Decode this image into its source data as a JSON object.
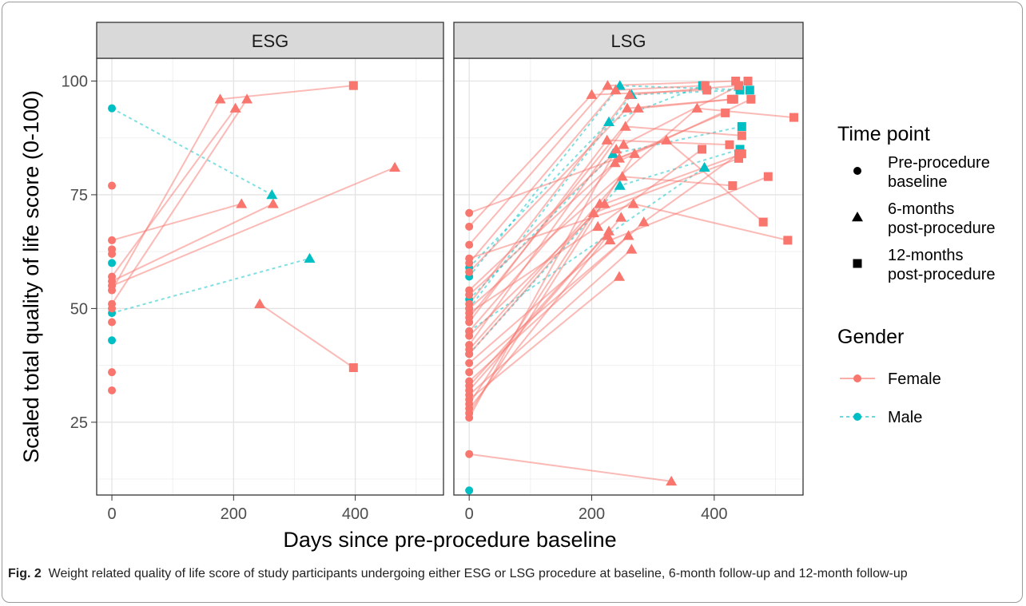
{
  "chart_data": {
    "type": "scatter",
    "ylabel": "Scaled total quality of life score (0-100)",
    "xlabel": "Days since pre-procedure baseline",
    "ylim": [
      9,
      105
    ],
    "yticks": [
      25,
      50,
      75,
      100
    ],
    "xticks": [
      0,
      200,
      400
    ],
    "grid": true,
    "panels": [
      {
        "name": "ESG",
        "xlim": [
          -25,
          545
        ],
        "trajectories": [
          {
            "gender": "Male",
            "points": [
              [
                0,
                94
              ],
              [
                263,
                75
              ]
            ]
          },
          {
            "gender": "Male",
            "points": [
              [
                0,
                49
              ],
              [
                325,
                61
              ]
            ]
          },
          {
            "gender": "Female",
            "points": [
              [
                0,
                54
              ],
              [
                178,
                96
              ],
              [
                397,
                99
              ]
            ]
          },
          {
            "gender": "Female",
            "points": [
              [
                0,
                51
              ],
              [
                222,
                96
              ]
            ]
          },
          {
            "gender": "Female",
            "points": [
              [
                0,
                57
              ],
              [
                203,
                94
              ]
            ]
          },
          {
            "gender": "Female",
            "points": [
              [
                0,
                65
              ],
              [
                213,
                73
              ]
            ]
          },
          {
            "gender": "Female",
            "points": [
              [
                0,
                56
              ],
              [
                265,
                73
              ]
            ]
          },
          {
            "gender": "Female",
            "points": [
              [
                0,
                55
              ],
              [
                465,
                81
              ]
            ]
          },
          {
            "gender": "Female",
            "points": [
              [
                243,
                51
              ],
              [
                397,
                37
              ]
            ]
          }
        ],
        "baseline_only": [
          {
            "gender": "Female",
            "y": 77
          },
          {
            "gender": "Female",
            "y": 63
          },
          {
            "gender": "Female",
            "y": 62
          },
          {
            "gender": "Female",
            "y": 50
          },
          {
            "gender": "Female",
            "y": 47
          },
          {
            "gender": "Female",
            "y": 36
          },
          {
            "gender": "Female",
            "y": 32
          },
          {
            "gender": "Male",
            "y": 60
          },
          {
            "gender": "Male",
            "y": 43
          }
        ]
      },
      {
        "name": "LSG",
        "xlim": [
          -25,
          545
        ],
        "trajectories": [
          {
            "gender": "Male",
            "points": [
              [
                0,
                59
              ],
              [
                228,
                91
              ],
              [
                381,
                99
              ]
            ]
          },
          {
            "gender": "Male",
            "points": [
              [
                0,
                57
              ],
              [
                246,
                99
              ],
              [
                458,
                98
              ]
            ]
          },
          {
            "gender": "Male",
            "points": [
              [
                0,
                52
              ],
              [
                235,
                84
              ],
              [
                445,
                90
              ]
            ]
          },
          {
            "gender": "Male",
            "points": [
              [
                0,
                50
              ],
              [
                265,
                97
              ],
              [
                442,
                98
              ]
            ]
          },
          {
            "gender": "Male",
            "points": [
              [
                0,
                45
              ],
              [
                384,
                81
              ]
            ]
          },
          {
            "gender": "Male",
            "points": [
              [
                0,
                40
              ],
              [
                246,
                77
              ],
              [
                442,
                85
              ]
            ]
          },
          {
            "gender": "Female",
            "points": [
              [
                0,
                71
              ],
              [
                322,
                87
              ],
              [
                480,
                69
              ]
            ]
          },
          {
            "gender": "Female",
            "points": [
              [
                0,
                68
              ],
              [
                200,
                97
              ],
              [
                388,
                98
              ]
            ]
          },
          {
            "gender": "Female",
            "points": [
              [
                0,
                64
              ],
              [
                226,
                99
              ],
              [
                435,
                100
              ]
            ]
          },
          {
            "gender": "Female",
            "points": [
              [
                0,
                61
              ],
              [
                268,
                73
              ],
              [
                520,
                65
              ]
            ]
          },
          {
            "gender": "Female",
            "points": [
              [
                0,
                60
              ],
              [
                239,
                98
              ],
              [
                385,
                99
              ]
            ]
          },
          {
            "gender": "Female",
            "points": [
              [
                0,
                58
              ],
              [
                258,
                94
              ],
              [
                428,
                96
              ]
            ]
          },
          {
            "gender": "Female",
            "points": [
              [
                0,
                54
              ],
              [
                252,
                86
              ],
              [
                455,
                100
              ]
            ]
          },
          {
            "gender": "Female",
            "points": [
              [
                0,
                53
              ],
              [
                245,
                83
              ],
              [
                418,
                93
              ]
            ]
          },
          {
            "gender": "Female",
            "points": [
              [
                0,
                51
              ],
              [
                262,
                97
              ],
              [
                440,
                99
              ]
            ]
          },
          {
            "gender": "Female",
            "points": [
              [
                0,
                50
              ],
              [
                372,
                94
              ],
              [
                530,
                92
              ]
            ]
          },
          {
            "gender": "Female",
            "points": [
              [
                0,
                49
              ],
              [
                210,
                68
              ],
              [
                380,
                85
              ]
            ]
          },
          {
            "gender": "Female",
            "points": [
              [
                0,
                48
              ],
              [
                276,
                94
              ],
              [
                432,
                96
              ]
            ]
          },
          {
            "gender": "Female",
            "points": [
              [
                0,
                47
              ],
              [
                225,
                87
              ],
              [
                425,
                86
              ]
            ]
          },
          {
            "gender": "Female",
            "points": [
              [
                0,
                45
              ],
              [
                238,
                82
              ],
              [
                460,
                96
              ]
            ]
          },
          {
            "gender": "Female",
            "points": [
              [
                0,
                44
              ],
              [
                221,
                73
              ],
              [
                445,
                84
              ]
            ]
          },
          {
            "gender": "Female",
            "points": [
              [
                0,
                42
              ],
              [
                255,
                90
              ],
              [
                445,
                88
              ]
            ]
          },
          {
            "gender": "Female",
            "points": [
              [
                0,
                41
              ],
              [
                250,
                79
              ],
              [
                430,
                77
              ]
            ]
          },
          {
            "gender": "Female",
            "points": [
              [
                0,
                40
              ],
              [
                203,
                71
              ],
              [
                440,
                83
              ]
            ]
          },
          {
            "gender": "Female",
            "points": [
              [
                0,
                38
              ],
              [
                230,
                65
              ],
              [
                488,
                79
              ]
            ]
          },
          {
            "gender": "Female",
            "points": [
              [
                0,
                36
              ],
              [
                260,
                66
              ]
            ]
          },
          {
            "gender": "Female",
            "points": [
              [
                0,
                34
              ],
              [
                285,
                69
              ],
              [
                440,
                84
              ]
            ]
          },
          {
            "gender": "Female",
            "points": [
              [
                0,
                33
              ],
              [
                228,
                67
              ]
            ]
          },
          {
            "gender": "Female",
            "points": [
              [
                0,
                32
              ],
              [
                248,
                70
              ]
            ]
          },
          {
            "gender": "Female",
            "points": [
              [
                0,
                31
              ],
              [
                265,
                63
              ]
            ]
          },
          {
            "gender": "Female",
            "points": [
              [
                0,
                30
              ],
              [
                245,
                57
              ]
            ]
          },
          {
            "gender": "Female",
            "points": [
              [
                0,
                29
              ],
              [
                213,
                73
              ]
            ]
          },
          {
            "gender": "Female",
            "points": [
              [
                0,
                28
              ],
              [
                226,
                66
              ]
            ]
          },
          {
            "gender": "Female",
            "points": [
              [
                0,
                27
              ],
              [
                270,
                84
              ]
            ]
          },
          {
            "gender": "Female",
            "points": [
              [
                0,
                26
              ],
              [
                240,
                85
              ]
            ]
          },
          {
            "gender": "Female",
            "points": [
              [
                0,
                18
              ],
              [
                330,
                12
              ]
            ]
          }
        ],
        "baseline_only": [
          {
            "gender": "Male",
            "y": 10
          }
        ]
      }
    ],
    "legend": {
      "placement": "right",
      "time_point": {
        "title": "Time point",
        "items": [
          {
            "shape": "circle",
            "line1": "Pre-procedure",
            "line2": "baseline"
          },
          {
            "shape": "triangle",
            "line1": "6-months",
            "line2": "post-procedure"
          },
          {
            "shape": "square",
            "line1": "12-months",
            "line2": "post-procedure"
          }
        ]
      },
      "gender": {
        "title": "Gender",
        "items": [
          {
            "name": "Female",
            "color": "#F8766D",
            "dash": false
          },
          {
            "name": "Male",
            "color": "#00BFC4",
            "dash": true
          }
        ]
      }
    },
    "colors": {
      "Female": "#F8766D",
      "Male": "#00BFC4"
    }
  },
  "caption": {
    "label": "Fig. 2",
    "text": "Weight related quality of life score of study participants undergoing either ESG or LSG procedure at baseline, 6-month follow-up and 12-month follow-up"
  }
}
